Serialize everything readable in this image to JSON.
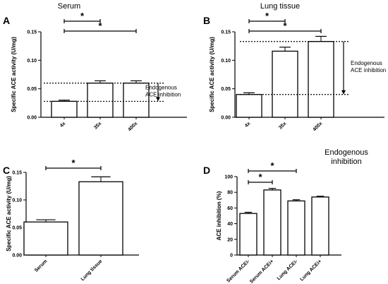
{
  "chart_data": [
    {
      "id": "A",
      "panel_letter": "A",
      "type": "bar",
      "title": "Serum",
      "ylabel": "Specific ACE activity (U/mg)",
      "categories": [
        "4x",
        "35x",
        "400x"
      ],
      "values": [
        0.028,
        0.06,
        0.06
      ],
      "errors": [
        0.002,
        0.004,
        0.004
      ],
      "ylim": [
        0,
        0.15
      ],
      "yticks": [
        "0.00",
        "0.05",
        "0.10",
        "0.15"
      ],
      "ytick_values": [
        0,
        0.05,
        0.1,
        0.15
      ],
      "significance": [
        {
          "from": 0,
          "to": 1,
          "label": "*"
        },
        {
          "from": 0,
          "to": 2,
          "label": "*"
        }
      ],
      "reference_lines": [
        0.06,
        0.028
      ],
      "annotation": [
        "Endogenous",
        "ACE inhibition"
      ]
    },
    {
      "id": "B",
      "panel_letter": "B",
      "type": "bar",
      "title": "Lung tissue",
      "ylabel": "Specific ACE activity (U/mg)",
      "categories": [
        "4x",
        "35x",
        "400x"
      ],
      "values": [
        0.04,
        0.116,
        0.133
      ],
      "errors": [
        0.003,
        0.007,
        0.009
      ],
      "ylim": [
        0,
        0.15
      ],
      "yticks": [
        "0.00",
        "0.05",
        "0.10",
        "0.15"
      ],
      "ytick_values": [
        0,
        0.05,
        0.1,
        0.15
      ],
      "significance": [
        {
          "from": 0,
          "to": 1,
          "label": "*"
        },
        {
          "from": 0,
          "to": 2,
          "label": "*"
        }
      ],
      "reference_lines": [
        0.133,
        0.04
      ],
      "annotation": [
        "Endogenous",
        "ACE inhibition"
      ]
    },
    {
      "id": "C",
      "panel_letter": "C",
      "type": "bar",
      "title": "",
      "ylabel": "Specific ACE activity (U/mg)",
      "categories": [
        "Serum",
        "Lung tissue"
      ],
      "values": [
        0.06,
        0.133
      ],
      "errors": [
        0.004,
        0.009
      ],
      "ylim": [
        0,
        0.15
      ],
      "yticks": [
        "0.00",
        "0.05",
        "0.10",
        "0.15"
      ],
      "ytick_values": [
        0,
        0.05,
        0.1,
        0.15
      ],
      "significance": [
        {
          "from": 0,
          "to": 1,
          "label": "*"
        }
      ],
      "reference_lines": [],
      "annotation": []
    },
    {
      "id": "D",
      "panel_letter": "D",
      "type": "bar",
      "title": "Endogenous inhibition",
      "ylabel": "ACE inhibition (%)",
      "categories": [
        "Serum ACEi-",
        "Serum ACEi+",
        "Lung ACEi-",
        "Lung ACEi+"
      ],
      "values": [
        53,
        83,
        69,
        74
      ],
      "errors": [
        1.5,
        2,
        1.5,
        1
      ],
      "ylim": [
        0,
        100
      ],
      "yticks": [
        "0",
        "20",
        "40",
        "60",
        "80",
        "100"
      ],
      "ytick_values": [
        0,
        20,
        40,
        60,
        80,
        100
      ],
      "significance": [
        {
          "from": 0,
          "to": 1,
          "label": "*"
        },
        {
          "from": 0,
          "to": 2,
          "label": "*"
        }
      ],
      "reference_lines": [],
      "annotation": []
    }
  ]
}
